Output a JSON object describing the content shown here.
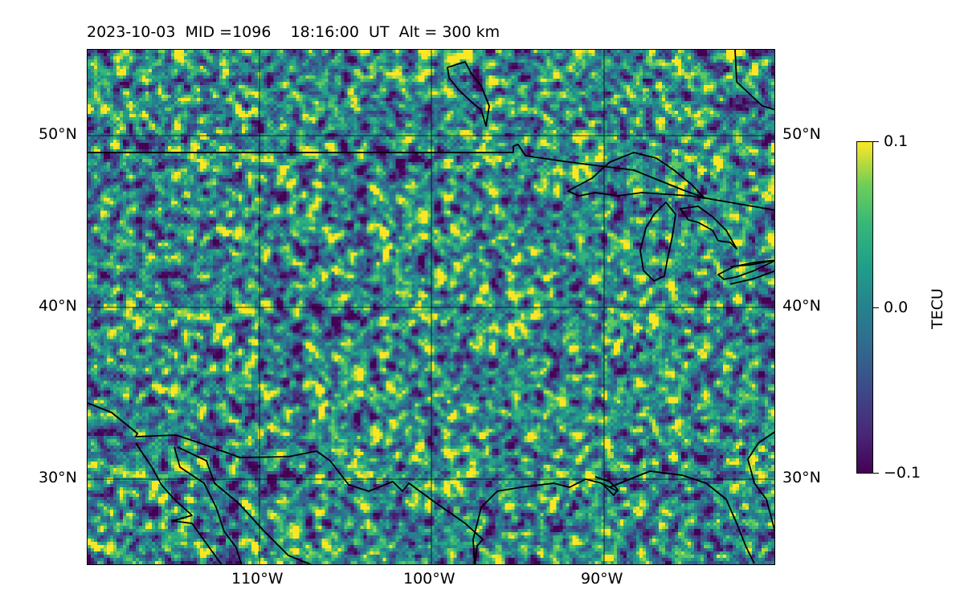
{
  "header": {
    "title": "2023-10-03  MID =1096    18:16:00  UT  Alt = 300 km"
  },
  "map": {
    "extent": {
      "lon_min": -120,
      "lon_max": -80,
      "lat_min": 25,
      "lat_max": 55
    },
    "lat_gridlines": [
      30,
      40,
      50
    ],
    "lon_gridlines": [
      -110,
      -100,
      -90
    ],
    "lat_labels": {
      "30": "30°N",
      "40": "40°N",
      "50": "50°N"
    },
    "lon_labels": {
      "-110": "110°W",
      "-100": "100°W",
      "-90": "90°W"
    },
    "field": "TEC perturbation",
    "colormap": "viridis"
  },
  "colorbar": {
    "label": "TECU",
    "min": -0.1,
    "max": 0.1,
    "ticks": [
      {
        "value": -0.1,
        "label": "−0.1"
      },
      {
        "value": 0.0,
        "label": "0.0"
      },
      {
        "value": 0.1,
        "label": "0.1"
      }
    ],
    "colors": [
      "#440154",
      "#482878",
      "#3e4989",
      "#31688e",
      "#26828e",
      "#1f9e89",
      "#35b779",
      "#6ece58",
      "#fde725"
    ]
  }
}
